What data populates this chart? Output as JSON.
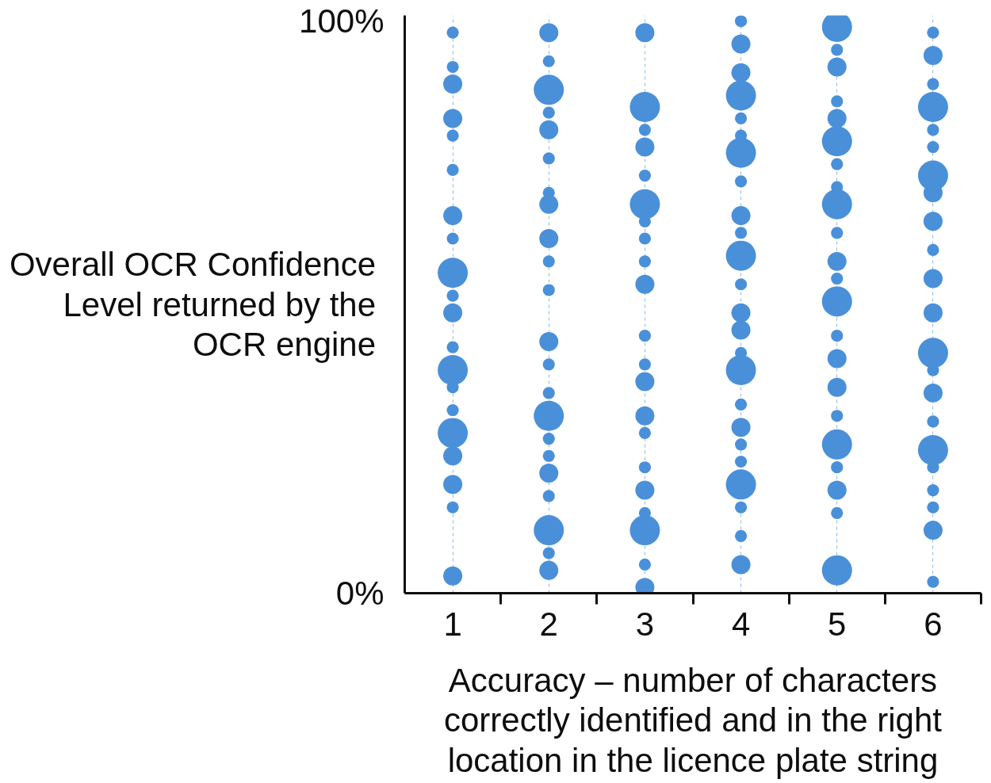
{
  "chart_data": {
    "type": "bubble",
    "ylabel": "Overall OCR Confidence Level returned by the OCR engine",
    "xlabel": "Accuracy – number of characters correctly identified and in the right location in the licence plate string",
    "xlim": [
      0.5,
      6.5
    ],
    "xticks": [
      1,
      {
        "value": 1.5,
        "label": null
      },
      2,
      {
        "value": 2.5,
        "label": null
      },
      3,
      {
        "value": 3.5,
        "label": null
      },
      4,
      {
        "value": 4.5,
        "label": null
      },
      5,
      {
        "value": 5.5,
        "label": null
      },
      6,
      {
        "value": 6.5,
        "label": null
      }
    ],
    "ylim": [
      0,
      101
    ],
    "yticks": [
      {
        "value": 0,
        "label": "0%"
      },
      {
        "value": 100,
        "label": "100%"
      }
    ],
    "grid": "x",
    "series": [
      {
        "color": "#4a90d9",
        "x": [
          1,
          1,
          1,
          1,
          1,
          1,
          1,
          1,
          1,
          1,
          1,
          1,
          1,
          1,
          1,
          1,
          1,
          1,
          1,
          1,
          2,
          2,
          2,
          2,
          2,
          2,
          2,
          2,
          2,
          2,
          2,
          2,
          2,
          2,
          2,
          2,
          2,
          2,
          2,
          2,
          2,
          2,
          3,
          3,
          3,
          3,
          3,
          3,
          3,
          3,
          3,
          3,
          3,
          3,
          3,
          3,
          3,
          3,
          3,
          3,
          3,
          3,
          3,
          4,
          4,
          4,
          4,
          4,
          4,
          4,
          4,
          4,
          4,
          4,
          4,
          4,
          4,
          4,
          4,
          4,
          4,
          4,
          4,
          4,
          4,
          4,
          4,
          5,
          5,
          5,
          5,
          5,
          5,
          5,
          5,
          5,
          5,
          5,
          5,
          5,
          5,
          5,
          5,
          5,
          5,
          5,
          5,
          5,
          5,
          6,
          6,
          6,
          6,
          6,
          6,
          6,
          6,
          6,
          6,
          6,
          6,
          6,
          6,
          6,
          6,
          6,
          6,
          6,
          6,
          6,
          6
        ],
        "values": [
          98,
          92,
          89,
          83,
          80,
          74,
          66,
          62,
          56,
          52,
          49,
          43,
          39,
          36,
          32,
          28,
          24,
          19,
          15,
          3,
          98,
          93,
          88,
          84,
          81,
          76,
          70,
          68,
          62,
          58,
          53,
          44,
          40,
          35,
          31,
          27,
          24,
          21,
          17,
          11,
          7,
          4,
          98,
          85,
          81,
          78,
          73,
          68,
          65,
          62,
          58,
          54,
          45,
          40,
          37,
          31,
          28,
          22,
          18,
          14,
          11,
          5,
          1,
          100,
          96,
          91,
          87,
          83,
          80,
          77,
          72,
          66,
          63,
          59,
          54,
          49,
          46,
          42,
          39,
          33,
          29,
          26,
          23,
          19,
          15,
          10,
          5,
          99,
          95,
          92,
          86,
          83,
          79,
          75,
          71,
          68,
          63,
          58,
          55,
          51,
          45,
          41,
          36,
          31,
          26,
          22,
          18,
          14,
          4,
          98,
          94,
          89,
          85,
          81,
          78,
          73,
          70,
          65,
          60,
          55,
          49,
          42,
          39,
          35,
          30,
          25,
          22,
          18,
          15,
          11,
          2
        ],
        "sizes": [
          0.16,
          0.16,
          0.4,
          0.4,
          0.16,
          0.16,
          0.4,
          0.16,
          1,
          0.16,
          0.4,
          0.16,
          1,
          0.16,
          0.16,
          1,
          0.4,
          0.4,
          0.16,
          0.4,
          0.4,
          0.16,
          1,
          0.16,
          0.4,
          0.16,
          0.16,
          0.4,
          0.4,
          0.16,
          0.16,
          0.4,
          0.16,
          0.16,
          1,
          0.16,
          0.16,
          0.4,
          0.16,
          1,
          0.16,
          0.4,
          0.4,
          1,
          0.16,
          0.4,
          0.16,
          1,
          0.16,
          0.16,
          0.16,
          0.4,
          0.16,
          0.16,
          0.4,
          0.4,
          0.16,
          0.16,
          0.4,
          0.16,
          1,
          0.16,
          0.4,
          0.16,
          0.4,
          0.4,
          1,
          0.16,
          0.16,
          1,
          0.16,
          0.4,
          0.16,
          1,
          0.16,
          0.4,
          0.4,
          0.16,
          1,
          0.16,
          0.4,
          0.16,
          0.16,
          1,
          0.16,
          0.16,
          0.4,
          1,
          0.16,
          0.4,
          0.16,
          0.4,
          1,
          0.16,
          0.16,
          1,
          0.16,
          0.4,
          0.16,
          1,
          0.16,
          0.4,
          0.4,
          0.16,
          1,
          0.16,
          0.4,
          0.16,
          1,
          0.16,
          0.4,
          0.16,
          1,
          0.16,
          0.16,
          1,
          0.4,
          0.4,
          0.16,
          0.4,
          0.4,
          1,
          0.16,
          0.4,
          0.16,
          1,
          0.16,
          0.16,
          0.16,
          0.4,
          0.16
        ]
      }
    ]
  }
}
